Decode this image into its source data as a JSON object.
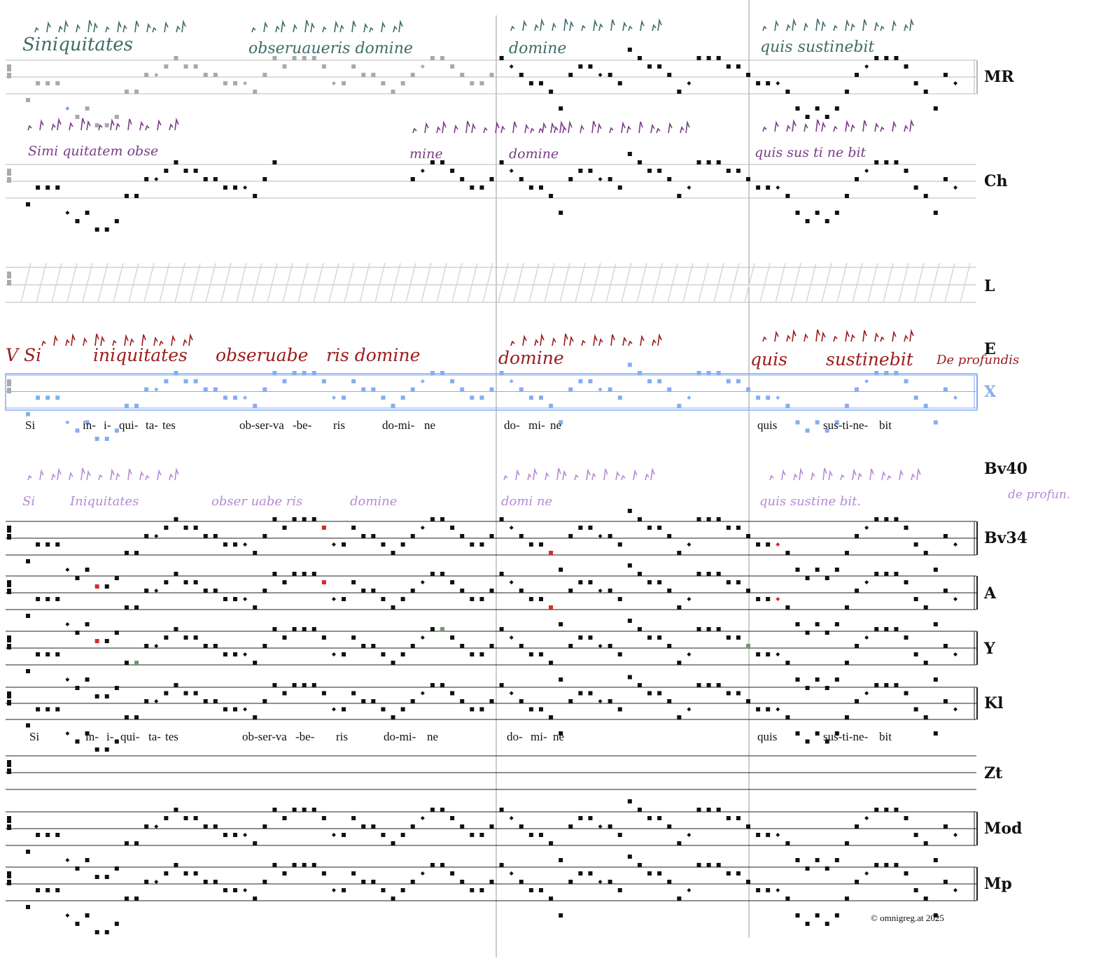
{
  "sigla": [
    "MR",
    "Ch",
    "L",
    "E",
    "X",
    "Bv40",
    "Bv34",
    "A",
    "Y",
    "Kl",
    "Zt",
    "Mod",
    "Mp"
  ],
  "colors": {
    "ink": "#111111",
    "gray_neume": "#a9a9a9",
    "blue": "#7fa7e3",
    "red": "#d62b2b",
    "green": "#6e9a72",
    "purple_dark": "#352a7a",
    "pink": "#f2b5b5",
    "mr_ink": "#3f6b68",
    "ch_ink": "#7a3c86",
    "e_ink": "#9c1b1b",
    "bv40_ink": "#b58ad6",
    "x_color": "#86aef0",
    "staff_line": "#aaaaaa"
  },
  "manuscript_text": {
    "MR": [
      "Siniquitates",
      "obseruaueris domine",
      "domine",
      "quis sustinebit"
    ],
    "Ch": [
      "Simi quitatem obse",
      "mine",
      "domine",
      "quis sus ti ne bit"
    ],
    "E": [
      "V Si",
      "iniquitates",
      "obseruabe",
      "ris domine",
      "domine",
      "quis",
      "sustinebit",
      "De profundis"
    ],
    "Bv40": [
      "Si",
      "Iniquitates",
      "obser uabe ris",
      "domine",
      "domi ne",
      "quis sustine bit.",
      "de profun."
    ]
  },
  "lyrics_line_1": [
    "Si",
    "in-",
    "i-",
    "qui-",
    "ta-",
    "tes",
    "ob-ser-va",
    "-be-",
    "ris",
    "do-mi-",
    "ne",
    "do-",
    "mi-",
    "ne",
    "quis",
    "sus-ti-ne-",
    "bit"
  ],
  "lyrics_line_2": [
    "Si",
    "in-",
    "i-",
    "qui-",
    "ta-",
    "tes",
    "ob-ser-va",
    "-be-",
    "ris",
    "do-mi-",
    "ne",
    "do-",
    "mi-",
    "ne",
    "quis",
    "sus-ti-ne-",
    "bit"
  ],
  "copyright": "©  omnigreg.at     2025"
}
